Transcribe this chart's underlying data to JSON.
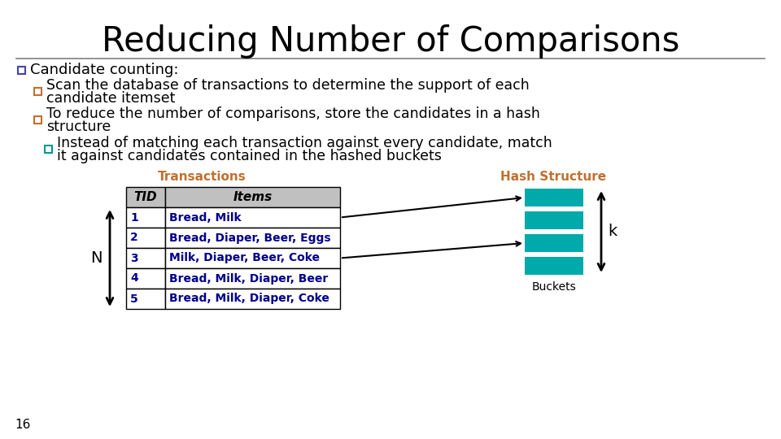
{
  "title": "Reducing Number of Comparisons",
  "title_fontsize": 30,
  "title_color": "#000000",
  "background_color": "#ffffff",
  "bullet1": "Candidate counting:",
  "bullet1_color": "#000000",
  "bullet1_box_color": "#4444AA",
  "bullet2_line1": "Scan the database of transactions to determine the support of each",
  "bullet2_line2": "candidate itemset",
  "bullet2_color": "#000000",
  "bullet2_box_color": "#C07030",
  "bullet3_line1": "To reduce the number of comparisons, store the candidates in a hash",
  "bullet3_line2": "structure",
  "bullet3_color": "#000000",
  "bullet3_box_color": "#C07030",
  "bullet4_line1": "Instead of matching each transaction against every candidate, match",
  "bullet4_line2": "it against candidates contained in the hashed buckets",
  "bullet4_color": "#000000",
  "bullet4_box_color": "#009999",
  "transactions_label": "Transactions",
  "transactions_label_color": "#C07030",
  "hash_label": "Hash Structure",
  "hash_label_color": "#C07030",
  "buckets_label": "Buckets",
  "buckets_label_color": "#000000",
  "table_header": [
    "TID",
    "Items"
  ],
  "table_rows": [
    [
      "1",
      "Bread, Milk"
    ],
    [
      "2",
      "Bread, Diaper, Beer, Eggs"
    ],
    [
      "3",
      "Milk, Diaper, Beer, Coke"
    ],
    [
      "4",
      "Bread, Milk, Diaper, Beer"
    ],
    [
      "5",
      "Bread, Milk, Diaper, Coke"
    ]
  ],
  "table_header_bg": "#C0C0C0",
  "table_text_color": "#00008B",
  "table_header_text_color": "#000000",
  "hash_bucket_color": "#00AAAA",
  "n_label": "N",
  "k_label": "k",
  "slide_number": "16",
  "line_color": "#808080"
}
